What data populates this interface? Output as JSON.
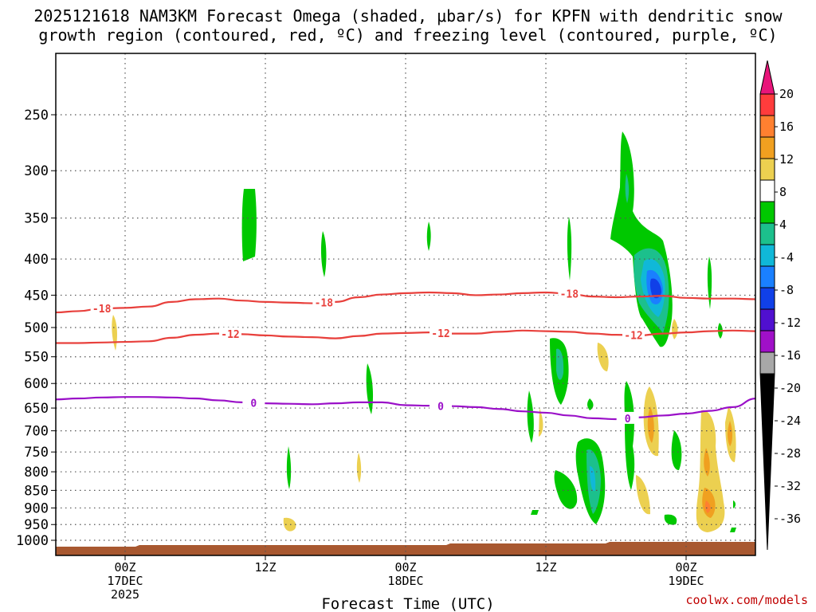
{
  "chart_data": {
    "type": "time-height contour",
    "title_line1": "2025121618 NAM3KM Forecast Omega (shaded, μbar/s) for KPFN with dendritic snow",
    "title_line2": "growth region (contoured, red, ºC) and freezing level (contoured, purple, ºC)",
    "xlabel": "Forecast Time (UTC)",
    "credit": "coolwx.com/models",
    "pressure_levels": [
      "250",
      "300",
      "350",
      "400",
      "450",
      "500",
      "550",
      "600",
      "650",
      "700",
      "750",
      "800",
      "850",
      "900",
      "950",
      "1000"
    ],
    "x_ticks": [
      {
        "hour": 6,
        "l1": "00Z",
        "l2": "17DEC",
        "l3": "2025"
      },
      {
        "hour": 18,
        "l1": "12Z",
        "l2": "",
        "l3": ""
      },
      {
        "hour": 30,
        "l1": "00Z",
        "l2": "18DEC",
        "l3": ""
      },
      {
        "hour": 42,
        "l1": "12Z",
        "l2": "",
        "l3": ""
      },
      {
        "hour": 54,
        "l1": "00Z",
        "l2": "19DEC",
        "l3": ""
      }
    ],
    "colorbar_levels": [
      "20",
      "16",
      "12",
      "8",
      "4",
      "-4",
      "-8",
      "-12",
      "-16",
      "-20",
      "-24",
      "-28",
      "-32",
      "-36"
    ],
    "colorbar_colors": [
      "#ff3c3c",
      "#ff8030",
      "#f0a020",
      "#ecd050",
      "#ffffff",
      "#00c800",
      "#1cc08c",
      "#10b8d8",
      "#1a80ff",
      "#1040e8",
      "#5010d0",
      "#a010c8",
      "#a8a8a8"
    ],
    "colorbar_top": "#e8157a",
    "colorbar_bottom": "#000000",
    "contours": [
      {
        "name": "isotherm -18C",
        "color": "#e8403c",
        "label": "-18",
        "points": [
          [
            0,
            476
          ],
          [
            2,
            474
          ],
          [
            4,
            470
          ],
          [
            6,
            469
          ],
          [
            8,
            467
          ],
          [
            10,
            460
          ],
          [
            12,
            456
          ],
          [
            14,
            455
          ],
          [
            16,
            458
          ],
          [
            18,
            460
          ],
          [
            20,
            461
          ],
          [
            22,
            462
          ],
          [
            24,
            460
          ],
          [
            26,
            453
          ],
          [
            28,
            449
          ],
          [
            30,
            447
          ],
          [
            32,
            446
          ],
          [
            34,
            447
          ],
          [
            36,
            450
          ],
          [
            38,
            449
          ],
          [
            40,
            447
          ],
          [
            42,
            446
          ],
          [
            44,
            448
          ],
          [
            46,
            452
          ],
          [
            48,
            453
          ],
          [
            50,
            452
          ],
          [
            52,
            451
          ],
          [
            54,
            454
          ],
          [
            56,
            455
          ],
          [
            58,
            455
          ],
          [
            60,
            456
          ]
        ],
        "label_hours": [
          4,
          23,
          44
        ]
      },
      {
        "name": "isotherm -12C",
        "color": "#e8403c",
        "label": "-12",
        "points": [
          [
            0,
            526
          ],
          [
            2,
            526
          ],
          [
            4,
            525
          ],
          [
            6,
            524
          ],
          [
            8,
            523
          ],
          [
            10,
            517
          ],
          [
            12,
            512
          ],
          [
            14,
            510
          ],
          [
            16,
            511
          ],
          [
            18,
            513
          ],
          [
            20,
            515
          ],
          [
            22,
            516
          ],
          [
            24,
            518
          ],
          [
            26,
            514
          ],
          [
            28,
            510
          ],
          [
            30,
            509
          ],
          [
            32,
            508
          ],
          [
            34,
            510
          ],
          [
            36,
            510
          ],
          [
            38,
            507
          ],
          [
            40,
            505
          ],
          [
            42,
            506
          ],
          [
            44,
            507
          ],
          [
            46,
            510
          ],
          [
            48,
            512
          ],
          [
            50,
            513
          ],
          [
            52,
            510
          ],
          [
            54,
            508
          ],
          [
            56,
            506
          ],
          [
            58,
            505
          ],
          [
            60,
            506
          ]
        ],
        "label_hours": [
          15,
          33,
          49.5
        ]
      },
      {
        "name": "freezing level 0C",
        "color": "#9a10c8",
        "label": "0",
        "points": [
          [
            0,
            632
          ],
          [
            2,
            630
          ],
          [
            4,
            628
          ],
          [
            6,
            627
          ],
          [
            8,
            627
          ],
          [
            10,
            628
          ],
          [
            12,
            630
          ],
          [
            14,
            634
          ],
          [
            16,
            638
          ],
          [
            18,
            640
          ],
          [
            20,
            641
          ],
          [
            22,
            642
          ],
          [
            24,
            640
          ],
          [
            26,
            638
          ],
          [
            28,
            638
          ],
          [
            30,
            644
          ],
          [
            32,
            645
          ],
          [
            34,
            646
          ],
          [
            36,
            648
          ],
          [
            38,
            652
          ],
          [
            40,
            657
          ],
          [
            42,
            660
          ],
          [
            44,
            666
          ],
          [
            46,
            672
          ],
          [
            48,
            674
          ],
          [
            50,
            670
          ],
          [
            52,
            666
          ],
          [
            54,
            662
          ],
          [
            56,
            656
          ],
          [
            58,
            648
          ],
          [
            60,
            630
          ]
        ],
        "label_hours": [
          17,
          33,
          49
        ]
      }
    ]
  }
}
